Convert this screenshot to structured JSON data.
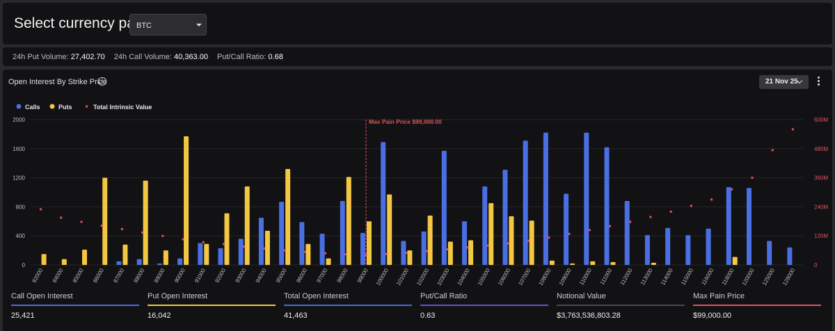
{
  "header": {
    "title": "Select currency pair:",
    "selected_pair": "BTC"
  },
  "stats": {
    "put_volume_label": "24h Put Volume:",
    "put_volume": "27,402.70",
    "call_volume_label": "24h Call Volume:",
    "call_volume": "40,363.00",
    "ratio_label": "Put/Call Ratio:",
    "ratio": "0.68"
  },
  "chart_panel": {
    "title": "Open Interest By Strike Price",
    "expiry": "21 Nov 25"
  },
  "summary": [
    {
      "label": "Call Open Interest",
      "value": "25,421",
      "color": "#4a6fe3"
    },
    {
      "label": "Put Open Interest",
      "value": "16,042",
      "color": "#f4c742"
    },
    {
      "label": "Total Open Interest",
      "value": "41,463",
      "color": "#3f6fd8"
    },
    {
      "label": "Put/Call Ratio",
      "value": "0.63",
      "color": "#6b4fd8"
    },
    {
      "label": "Notional Value",
      "value": "$3,763,536,803.28",
      "color": "#4a4a4e"
    },
    {
      "label": "Max Pain Price",
      "value": "$99,000.00",
      "color": "#e0535f"
    }
  ],
  "chart_data": {
    "type": "bar",
    "legend": [
      {
        "name": "Calls",
        "color": "#4a6fe3"
      },
      {
        "name": "Puts",
        "color": "#f4c742"
      },
      {
        "name": "Total Intrinsic Value",
        "color": "#e0535f"
      }
    ],
    "categories": [
      "82000",
      "84000",
      "85000",
      "86000",
      "87000",
      "88000",
      "89000",
      "90000",
      "91000",
      "92000",
      "93000",
      "94000",
      "95000",
      "96000",
      "97000",
      "98000",
      "99000",
      "100000",
      "101000",
      "102000",
      "103000",
      "104000",
      "105000",
      "106000",
      "107000",
      "108000",
      "109000",
      "110000",
      "111000",
      "112000",
      "113000",
      "114000",
      "115000",
      "116000",
      "118000",
      "120000",
      "125000",
      "128000"
    ],
    "series": [
      {
        "name": "Calls",
        "values": [
          0,
          0,
          0,
          0,
          50,
          80,
          20,
          90,
          300,
          230,
          360,
          650,
          870,
          590,
          430,
          880,
          440,
          1690,
          330,
          460,
          1570,
          600,
          1080,
          1310,
          1710,
          1820,
          980,
          1820,
          1620,
          880,
          410,
          510,
          410,
          500,
          1070,
          1060,
          330,
          240
        ]
      },
      {
        "name": "Puts",
        "values": [
          150,
          80,
          210,
          1200,
          280,
          1160,
          200,
          1770,
          290,
          710,
          1080,
          470,
          1320,
          290,
          90,
          1210,
          600,
          970,
          200,
          680,
          320,
          340,
          850,
          670,
          610,
          60,
          20,
          50,
          40,
          0,
          30,
          0,
          0,
          0,
          110,
          0,
          0,
          0
        ]
      },
      {
        "name": "Total Intrinsic Value",
        "values": [
          230,
          195,
          178,
          162,
          148,
          134,
          120,
          106,
          94,
          86,
          76,
          68,
          60,
          54,
          48,
          44,
          41,
          45,
          50,
          57,
          64,
          72,
          80,
          89,
          100,
          113,
          128,
          144,
          160,
          178,
          198,
          220,
          244,
          270,
          312,
          360,
          474,
          560
        ]
      }
    ],
    "y_left": {
      "ticks": [
        "2000",
        "1600",
        "1200",
        "800",
        "400",
        "0"
      ],
      "range": [
        0,
        2000
      ]
    },
    "y_right": {
      "ticks": [
        "600M",
        "480M",
        "360M",
        "240M",
        "120M",
        "0"
      ],
      "range": [
        0,
        600
      ]
    },
    "annotation": {
      "label": "Max Pain Price $99,000.00",
      "category": "99000"
    },
    "grid": true
  }
}
